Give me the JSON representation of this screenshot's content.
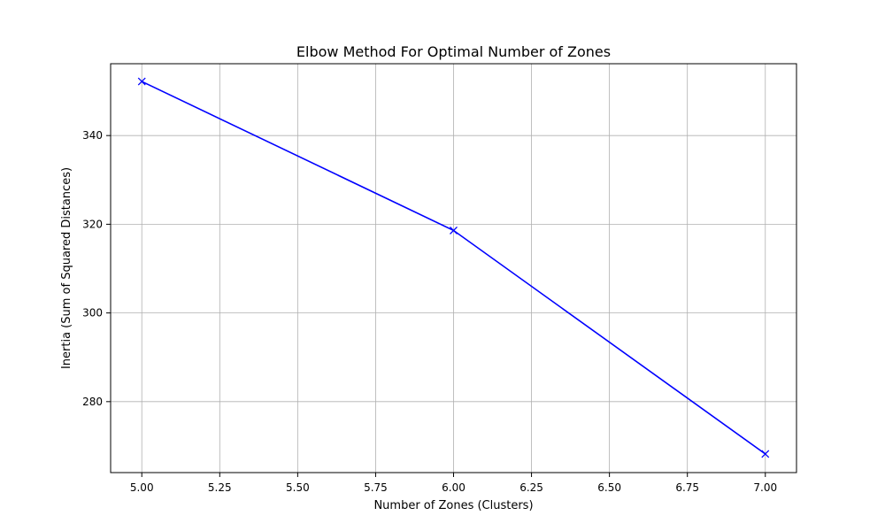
{
  "chart_data": {
    "type": "line",
    "title": "Elbow Method For Optimal Number of Zones",
    "xlabel": "Number of Zones (Clusters)",
    "ylabel": "Inertia (Sum of Squared Distances)",
    "xlim": [
      4.9,
      7.1
    ],
    "ylim": [
      264.0,
      356.2
    ],
    "xticks": [
      5.0,
      5.25,
      5.5,
      5.75,
      6.0,
      6.25,
      6.5,
      6.75,
      7.0
    ],
    "xtick_labels": [
      "5.00",
      "5.25",
      "5.50",
      "5.75",
      "6.00",
      "6.25",
      "6.50",
      "6.75",
      "7.00"
    ],
    "yticks": [
      280,
      300,
      320,
      340
    ],
    "ytick_labels": [
      "280",
      "300",
      "320",
      "340"
    ],
    "grid": true,
    "series": [
      {
        "name": "Inertia",
        "color": "#0000ff",
        "marker": "x",
        "x": [
          5,
          6,
          7
        ],
        "values": [
          352.2,
          318.6,
          268.2
        ]
      }
    ]
  }
}
